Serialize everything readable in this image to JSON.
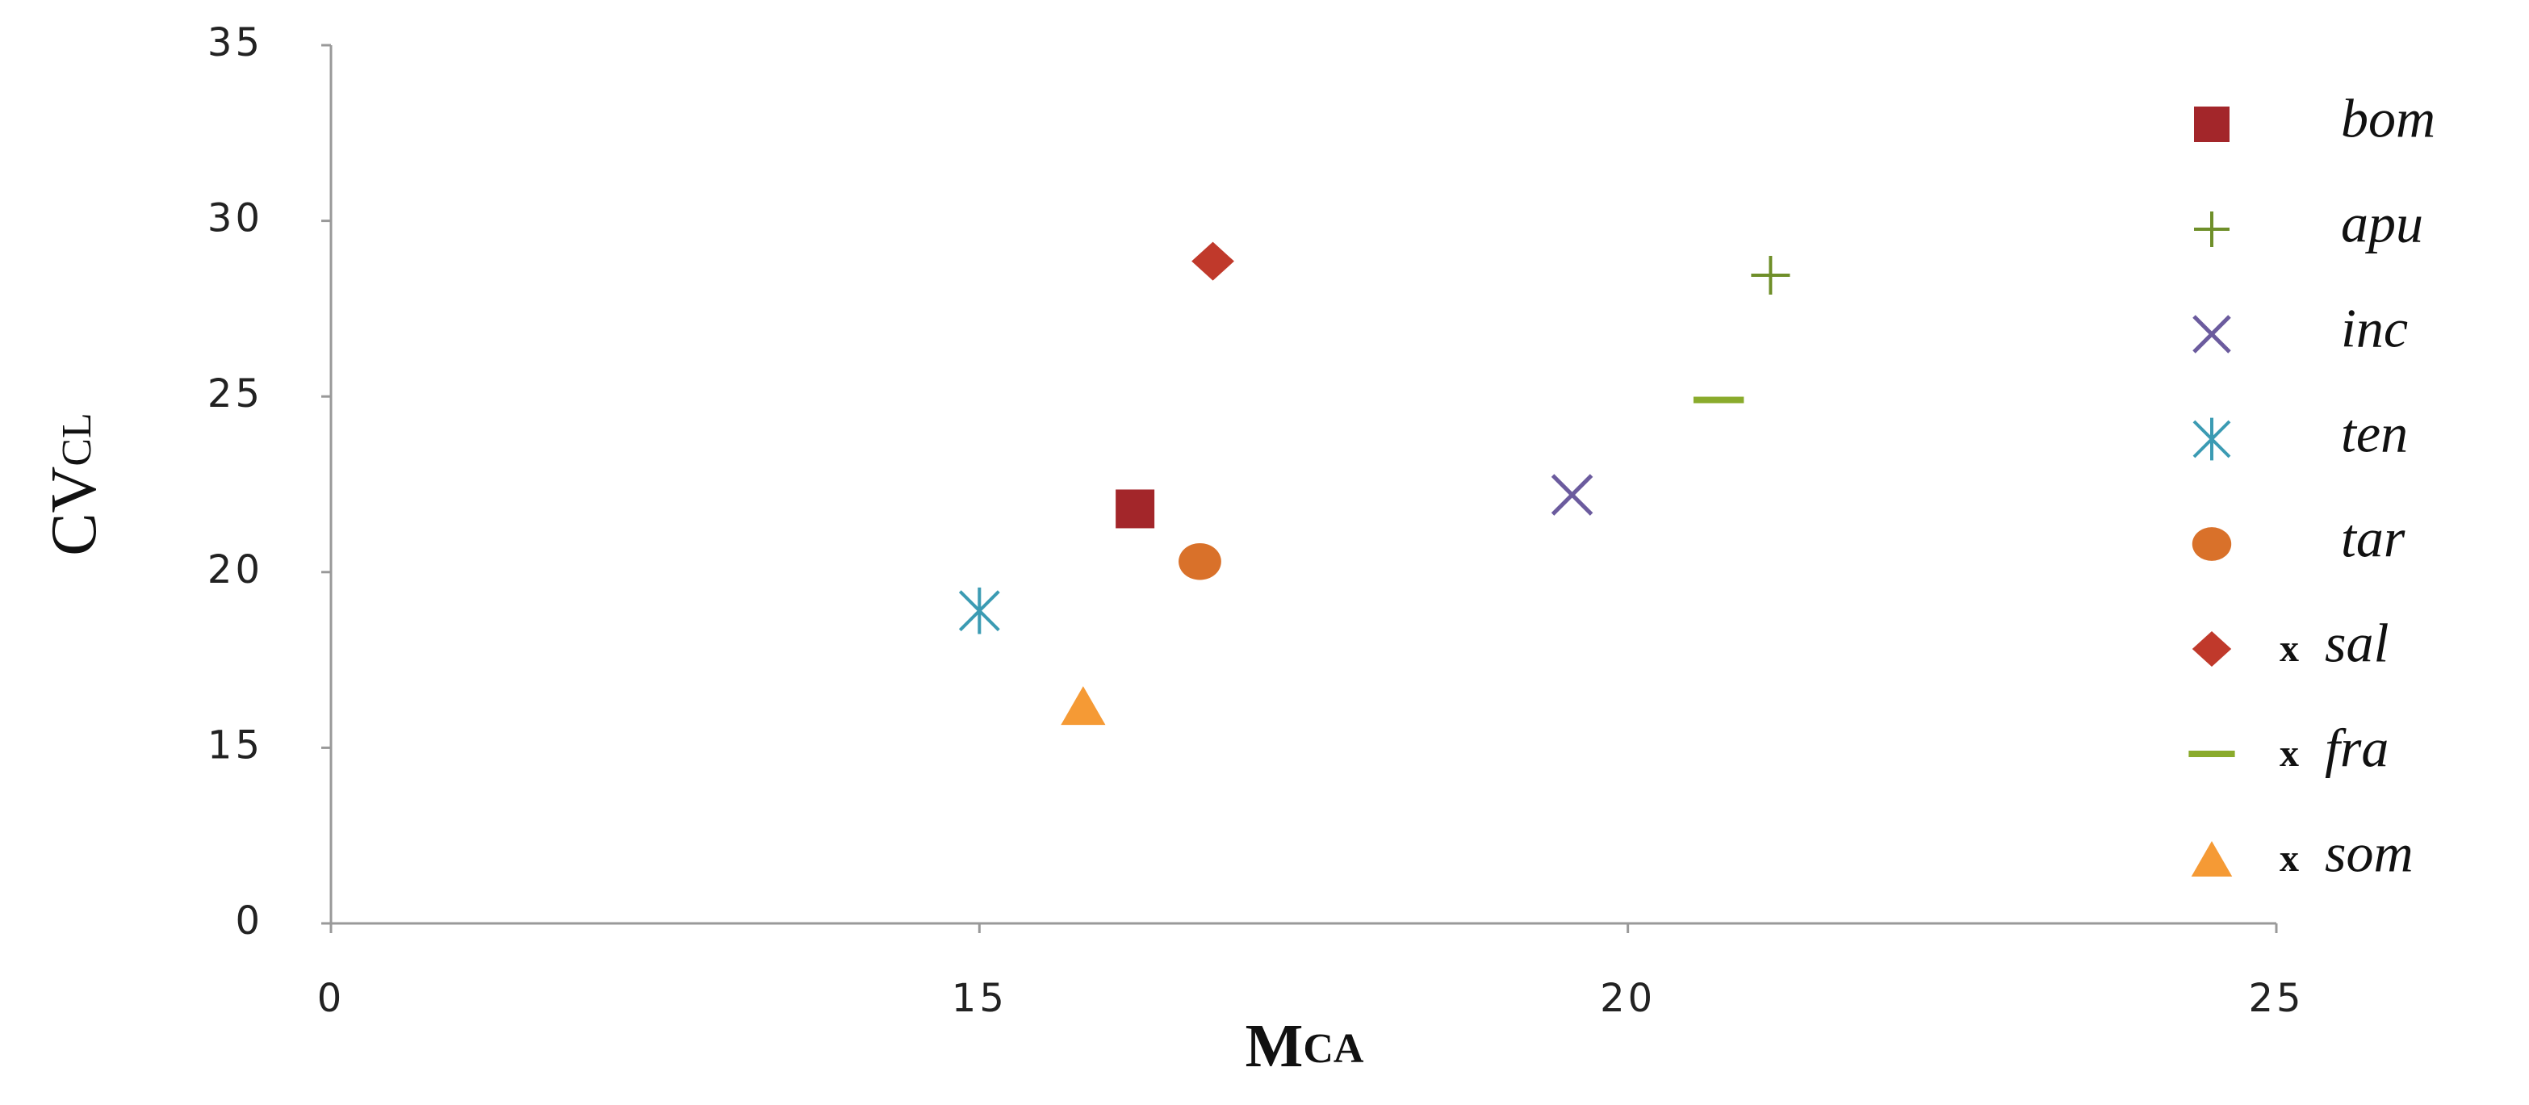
{
  "chart_data": {
    "type": "scatter",
    "x_label": [
      "M",
      "CA"
    ],
    "y_label": [
      "CV",
      "CL"
    ],
    "xlim": [
      0,
      25
    ],
    "xticks": [
      0,
      15,
      20,
      25
    ],
    "ylim": [
      0,
      35
    ],
    "yticks": [
      0,
      15,
      20,
      25,
      30,
      35
    ],
    "series": [
      {
        "name": "bom",
        "color": "#a3262a",
        "marker": "square",
        "x": [
          16.2
        ],
        "values": [
          21.8
        ]
      },
      {
        "name": "apu",
        "color": "#6f8f2a",
        "marker": "plus",
        "x": [
          21.1
        ],
        "values": [
          28.45
        ]
      },
      {
        "name": "inc",
        "color": "#6b5b9e",
        "marker": "cross",
        "x": [
          19.57
        ],
        "values": [
          22.2
        ]
      },
      {
        "name": "ten",
        "color": "#3b9bb3",
        "marker": "star",
        "x": [
          15
        ],
        "values": [
          18.9
        ]
      },
      {
        "name": "tar",
        "color": "#d9712a",
        "marker": "circle",
        "x": [
          16.7
        ],
        "values": [
          20.3
        ]
      },
      {
        "name": "sal",
        "prefix": "x",
        "color": "#c0392b",
        "marker": "diamond",
        "x": [
          16.8
        ],
        "values": [
          28.85
        ]
      },
      {
        "name": "fra",
        "prefix": "x",
        "color": "#8aab2c",
        "marker": "dash",
        "x": [
          20.7
        ],
        "values": [
          24.9
        ]
      },
      {
        "name": "som",
        "prefix": "x",
        "color": "#f59a35",
        "marker": "triangle",
        "x": [
          15.8
        ],
        "values": [
          16.2
        ]
      }
    ]
  }
}
